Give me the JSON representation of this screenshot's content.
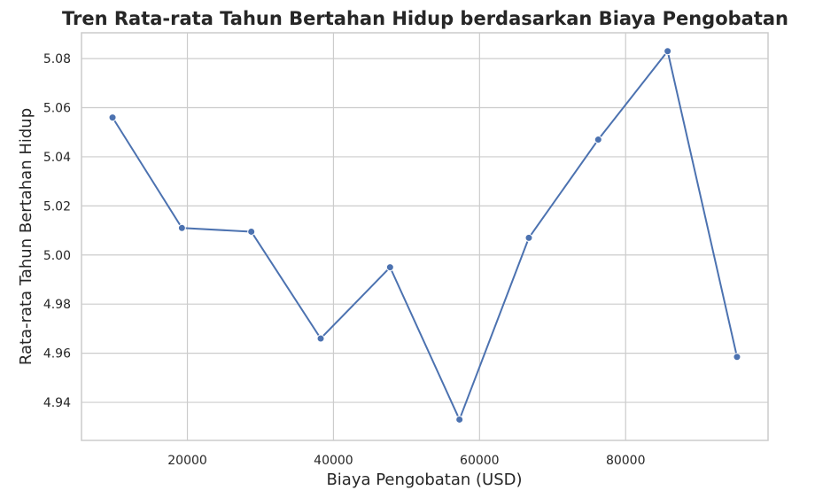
{
  "chart_data": {
    "type": "line",
    "title": "Tren Rata-rata Tahun Bertahan Hidup berdasarkan Biaya Pengobatan",
    "xlabel": "Biaya Pengobatan (USD)",
    "ylabel": "Rata-rata Tahun Bertahan Hidup",
    "xlim": [
      5500,
      99500
    ],
    "ylim": [
      4.9245,
      5.0905
    ],
    "xticks": [
      20000,
      40000,
      60000,
      80000
    ],
    "yticks": [
      4.94,
      4.96,
      4.98,
      5.0,
      5.02,
      5.04,
      5.06,
      5.08
    ],
    "ytick_labels": [
      "4.94",
      "4.96",
      "4.98",
      "5.00",
      "5.02",
      "5.04",
      "5.06",
      "5.08"
    ],
    "grid": true,
    "color": "#4c72b0",
    "series": [
      {
        "x": [
          9750,
          19250,
          28750,
          38250,
          47750,
          57250,
          66750,
          76250,
          85750,
          95250
        ],
        "y": [
          5.056,
          5.011,
          5.0095,
          4.966,
          4.995,
          4.933,
          5.007,
          5.047,
          5.083,
          4.9585
        ]
      }
    ]
  }
}
